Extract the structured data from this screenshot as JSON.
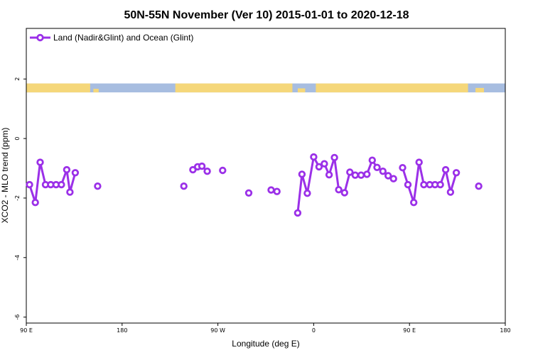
{
  "chart_data": {
    "type": "line",
    "title": "50N-55N November (Ver 10)   2015-01-01 to 2020-12-18",
    "xlabel": "Longitude (deg E)",
    "ylabel": "XCO2 - MLO trend (ppm)",
    "xlim": [
      90,
      540
    ],
    "ylim": [
      -6.2,
      3.7
    ],
    "grid": false,
    "legend_position": "top-left",
    "x_ticks": [
      {
        "value": 90,
        "label": "90 E"
      },
      {
        "value": 180,
        "label": "180"
      },
      {
        "value": 270,
        "label": "90 W"
      },
      {
        "value": 360,
        "label": "0"
      },
      {
        "value": 450,
        "label": "90 E"
      },
      {
        "value": 540,
        "label": "180"
      }
    ],
    "y_ticks": [
      {
        "value": 2,
        "label": "2"
      },
      {
        "value": 0,
        "label": "0"
      },
      {
        "value": -2,
        "label": "-2"
      },
      {
        "value": -4,
        "label": "-4"
      },
      {
        "value": -6,
        "label": "-6"
      }
    ],
    "map_strip": {
      "y_top": 1.85,
      "y_bottom": 1.55,
      "land_color": "#f5d77a",
      "ocean_color": "#a7bde0"
    },
    "series": [
      {
        "name": "Land (Nadir&Glint) and Ocean (Glint)",
        "color": "#9b30e8",
        "segments": [
          [
            [
              93,
              -1.55
            ],
            [
              98.5,
              -2.15
            ],
            [
              103,
              -0.8
            ],
            [
              108,
              -1.55
            ],
            [
              113,
              -1.55
            ],
            [
              118,
              -1.55
            ],
            [
              123,
              -1.55
            ],
            [
              128,
              -1.05
            ],
            [
              131,
              -1.8
            ],
            [
              136,
              -1.15
            ]
          ],
          [
            [
              157,
              -1.6
            ]
          ],
          [
            [
              238,
              -1.6
            ]
          ],
          [
            [
              246.5,
              -1.05
            ],
            [
              251,
              -0.95
            ],
            [
              255,
              -0.93
            ],
            [
              260,
              -1.1
            ]
          ],
          [
            [
              274.5,
              -1.07
            ]
          ],
          [
            [
              299,
              -1.83
            ]
          ],
          [
            [
              320,
              -1.73
            ],
            [
              325.5,
              -1.78
            ]
          ],
          [
            [
              345,
              -2.5
            ],
            [
              349,
              -1.2
            ],
            [
              354,
              -1.84
            ],
            [
              360,
              -0.62
            ],
            [
              365,
              -0.95
            ],
            [
              370,
              -0.85
            ],
            [
              374.5,
              -1.22
            ],
            [
              379.5,
              -0.64
            ],
            [
              383.5,
              -1.72
            ],
            [
              389,
              -1.82
            ],
            [
              394,
              -1.13
            ],
            [
              399,
              -1.23
            ],
            [
              404.5,
              -1.23
            ],
            [
              410,
              -1.2
            ],
            [
              415,
              -0.73
            ],
            [
              419.5,
              -0.97
            ],
            [
              425,
              -1.1
            ],
            [
              430,
              -1.25
            ],
            [
              435,
              -1.35
            ]
          ],
          [
            [
              443.5,
              -0.98
            ],
            [
              448.5,
              -1.55
            ],
            [
              454,
              -2.15
            ],
            [
              459,
              -0.8
            ],
            [
              463.5,
              -1.55
            ],
            [
              469,
              -1.55
            ],
            [
              474,
              -1.55
            ],
            [
              479,
              -1.55
            ],
            [
              484,
              -1.05
            ],
            [
              488.5,
              -1.8
            ],
            [
              494,
              -1.15
            ]
          ],
          [
            [
              515,
              -1.6
            ]
          ]
        ]
      }
    ]
  }
}
